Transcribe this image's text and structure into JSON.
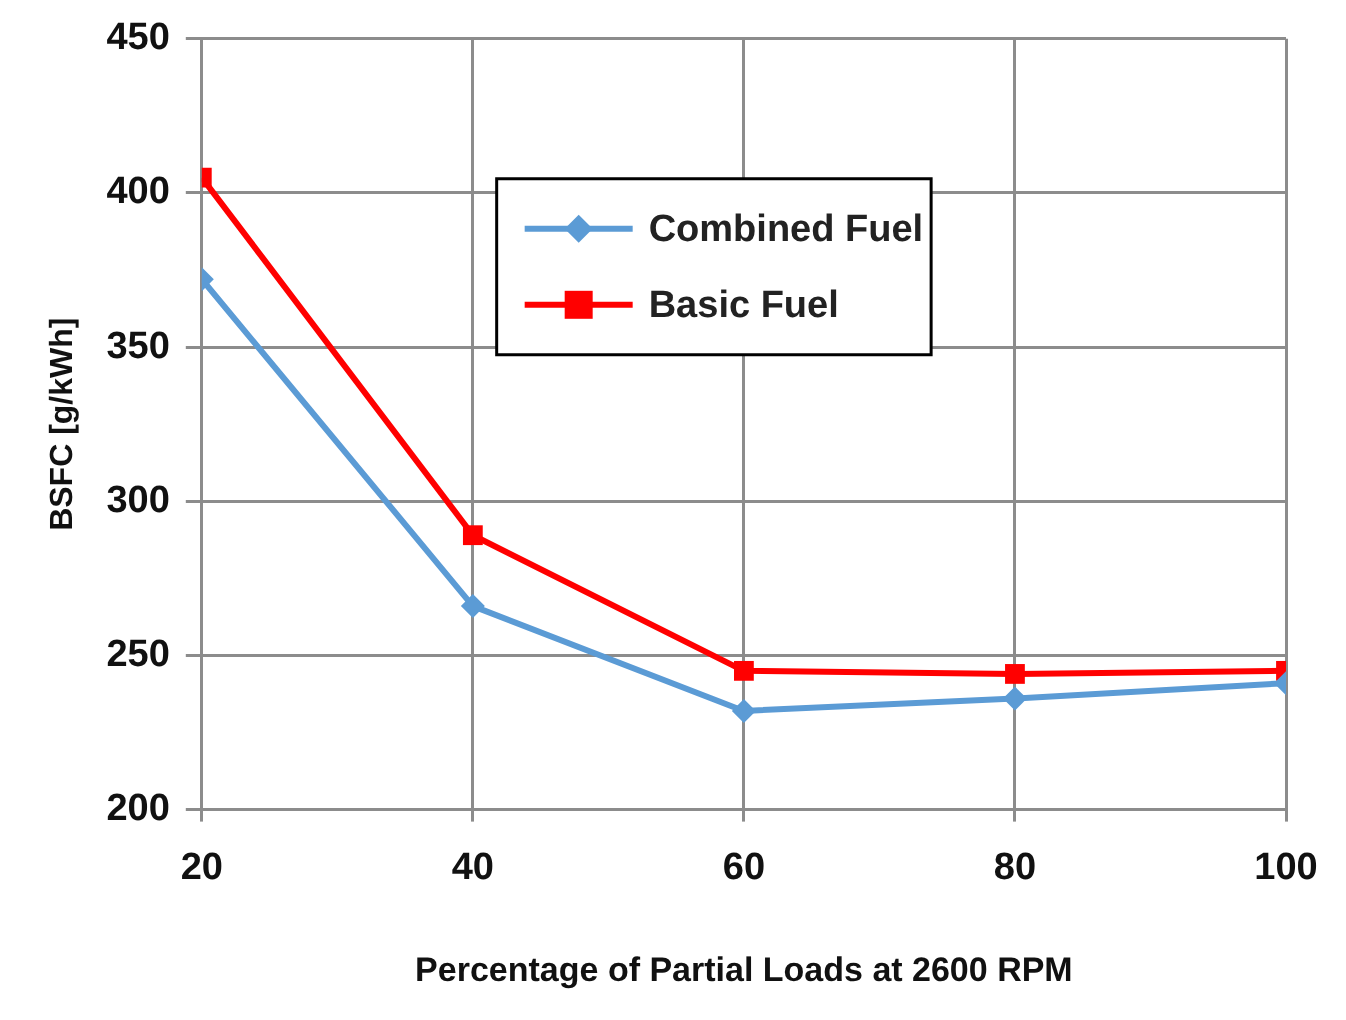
{
  "chart_data": {
    "type": "line",
    "xlabel": "Percentage of Partial Loads at 2600 RPM",
    "ylabel": "BSFC [g/kWh]",
    "x": [
      20,
      40,
      60,
      80,
      100
    ],
    "series": [
      {
        "name": "Combined Fuel",
        "color": "#5b9bd5",
        "marker": "diamond",
        "values": [
          372,
          266,
          232,
          236,
          241
        ]
      },
      {
        "name": "Basic Fuel",
        "color": "#ff0000",
        "marker": "square",
        "values": [
          405,
          289,
          245,
          244,
          245
        ]
      }
    ],
    "xlim": [
      20,
      100
    ],
    "xticks": [
      20,
      40,
      60,
      80,
      100
    ],
    "ylim": [
      200,
      450
    ],
    "yticks": [
      200,
      250,
      300,
      350,
      400,
      450
    ],
    "grid": true,
    "legend": "top",
    "line_style": "solid"
  }
}
